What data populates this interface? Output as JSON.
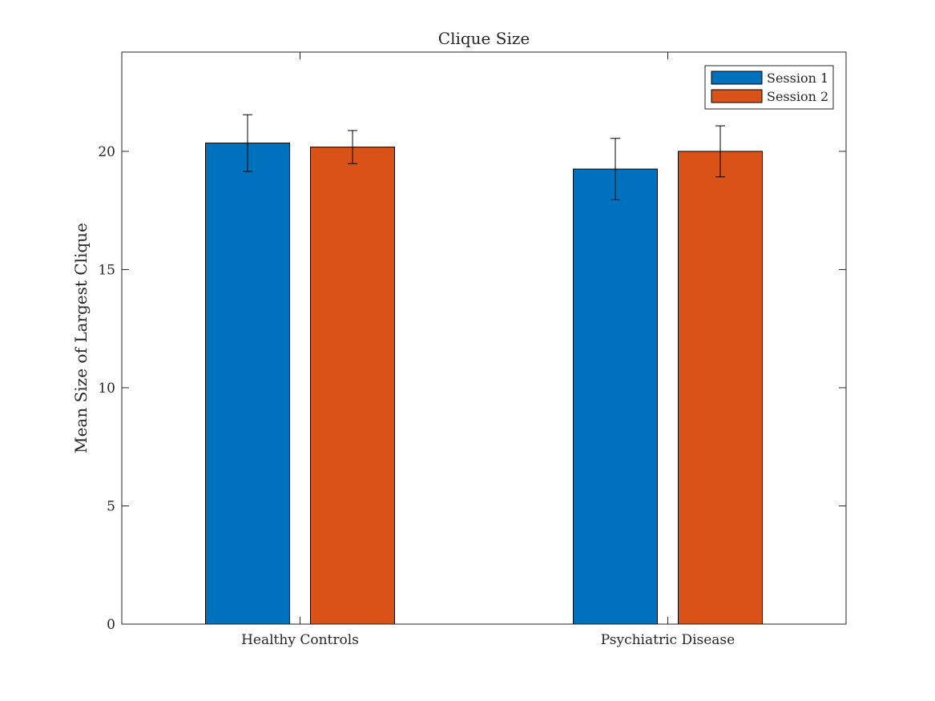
{
  "chart_data": {
    "type": "bar",
    "title": "Clique Size",
    "xlabel": "",
    "ylabel": "Mean Size of Largest Clique",
    "categories": [
      "Healthy Controls",
      "Psychiatric Disease"
    ],
    "series": [
      {
        "name": "Session 1",
        "color": "#0072BD",
        "values": [
          20.35,
          19.25
        ],
        "error": [
          1.2,
          1.3
        ]
      },
      {
        "name": "Session 2",
        "color": "#D95319",
        "values": [
          20.18,
          20.0
        ],
        "error": [
          0.7,
          1.08
        ]
      }
    ],
    "ylim": [
      0,
      24.2
    ],
    "yticks": [
      0,
      5,
      10,
      15,
      20
    ],
    "grid": false,
    "legend": "top-right",
    "error_bars": true
  }
}
